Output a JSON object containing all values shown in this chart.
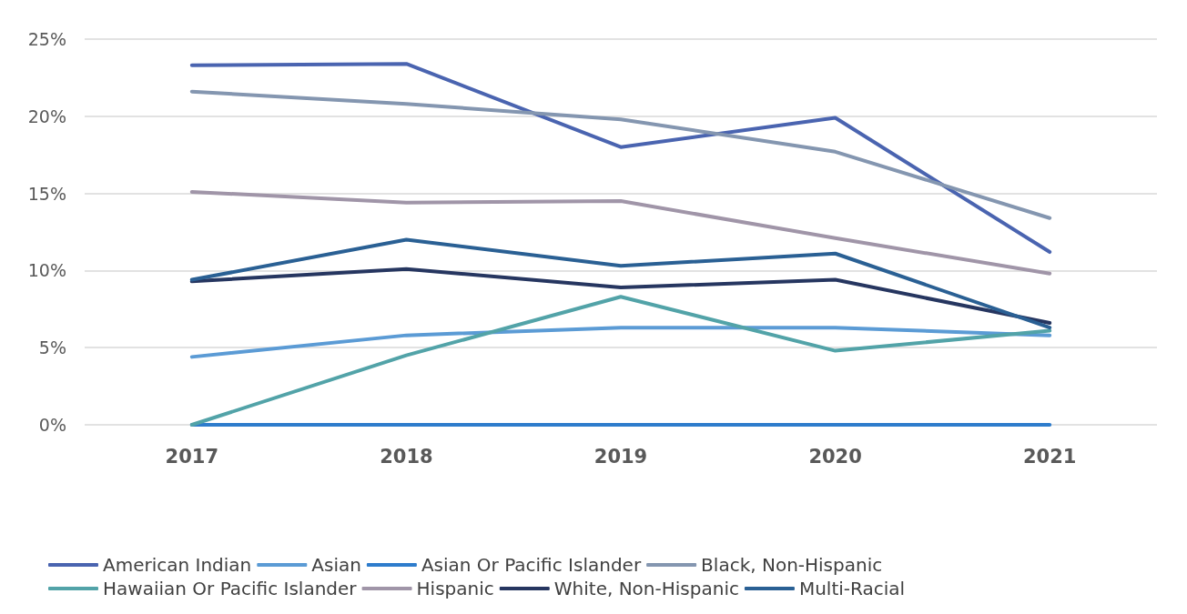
{
  "chart_data": {
    "type": "line",
    "categories": [
      "2017",
      "2018",
      "2019",
      "2020",
      "2021"
    ],
    "series": [
      {
        "name": "American Indian",
        "color": "#4a64b0",
        "values": [
          23.3,
          23.4,
          18.0,
          19.9,
          11.2
        ]
      },
      {
        "name": "Asian",
        "color": "#5b9bd5",
        "values": [
          4.4,
          5.8,
          6.3,
          6.3,
          5.8
        ]
      },
      {
        "name": "Asian Or Pacific Islander",
        "color": "#2e7ccc",
        "values": [
          0,
          0,
          0,
          0,
          0
        ]
      },
      {
        "name": "Black, Non-Hispanic",
        "color": "#8496b0",
        "values": [
          21.6,
          20.8,
          19.8,
          17.7,
          13.4
        ]
      },
      {
        "name": "Hawaiian Or Pacific Islander",
        "color": "#52a3a8",
        "values": [
          0,
          4.5,
          8.3,
          4.8,
          6.1
        ]
      },
      {
        "name": "Hispanic",
        "color": "#a095a8",
        "values": [
          15.1,
          14.4,
          14.5,
          12.1,
          9.8
        ]
      },
      {
        "name": "White, Non-Hispanic",
        "color": "#263660",
        "values": [
          9.3,
          10.1,
          8.9,
          9.4,
          6.6
        ]
      },
      {
        "name": "Multi-Racial",
        "color": "#2a6094",
        "values": [
          9.4,
          12.0,
          10.3,
          11.1,
          6.3
        ]
      }
    ],
    "ylim": [
      0,
      25
    ],
    "yticks": [
      {
        "value": 0,
        "label": "0%"
      },
      {
        "value": 5,
        "label": "5%"
      },
      {
        "value": 10,
        "label": "10%"
      },
      {
        "value": 15,
        "label": "15%"
      },
      {
        "value": 20,
        "label": "20%"
      },
      {
        "value": 25,
        "label": "25%"
      }
    ],
    "grid": "y",
    "legend": "bottom",
    "marker": "none",
    "line_style": "solid"
  }
}
